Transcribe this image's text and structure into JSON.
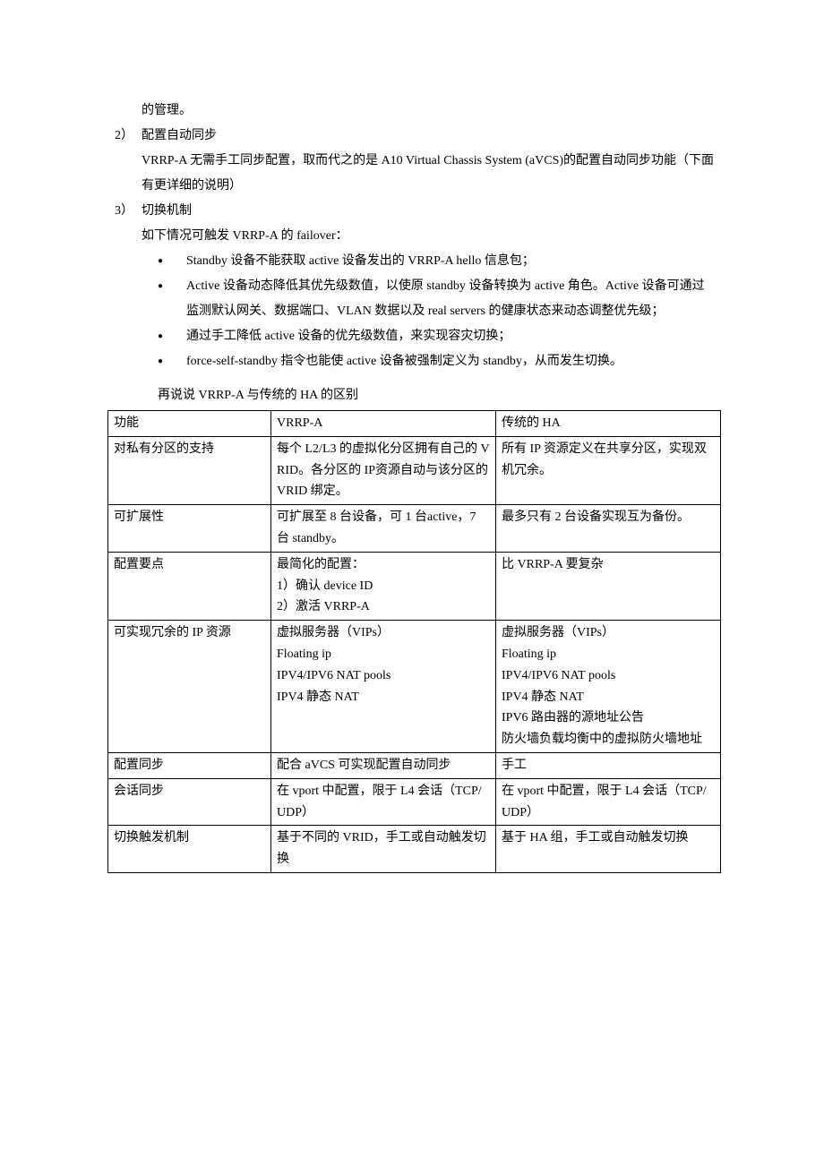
{
  "top_fragment": "的管理。",
  "item2": {
    "label": "2）",
    "title": "配置自动同步",
    "body": "VRRP-A 无需手工同步配置，取而代之的是 A10 Virtual Chassis System (aVCS)的配置自动同步功能（下面有更详细的说明）"
  },
  "item3": {
    "label": "3）",
    "title": "切换机制",
    "intro": "如下情况可触发 VRRP-A 的 failover：",
    "bullets": [
      "Standby 设备不能获取 active 设备发出的 VRRP-A hello 信息包；",
      "Active 设备动态降低其优先级数值，以使原 standby 设备转换为 active 角色。Active 设备可通过监测默认网关、数据端口、VLAN 数据以及 real servers 的健康状态来动态调整优先级；",
      "通过手工降低 active 设备的优先级数值，来实现容灾切换；",
      "force-self-standby 指令也能使 active 设备被强制定义为 standby，从而发生切换。"
    ]
  },
  "table_intro": "再说说 VRRP-A 与传统的 HA 的区别",
  "table": {
    "headers": [
      "功能",
      "VRRP-A",
      "传统的 HA"
    ],
    "rows": [
      [
        "对私有分区的支持",
        "每个 L2/L3 的虚拟化分区拥有自己的 VRID。各分区的 IP资源自动与该分区的 VRID 绑定。",
        "所有 IP 资源定义在共享分区，实现双机冗余。"
      ],
      [
        "可扩展性",
        "可扩展至 8 台设备，可 1 台active，7 台 standby。",
        "最多只有 2 台设备实现互为备份。"
      ],
      [
        "配置要点",
        "最简化的配置：\n1）确认 device ID\n2）激活 VRRP-A",
        "比 VRRP-A 要复杂"
      ],
      [
        "可实现冗余的 IP 资源",
        "虚拟服务器（VIPs）\nFloating ip\nIPV4/IPV6 NAT pools\nIPV4 静态 NAT",
        "虚拟服务器（VIPs）\nFloating ip\nIPV4/IPV6 NAT pools\nIPV4 静态 NAT\nIPV6 路由器的源地址公告\n防火墙负载均衡中的虚拟防火墙地址"
      ],
      [
        "配置同步",
        "配合 aVCS 可实现配置自动同步",
        "手工"
      ],
      [
        "会话同步",
        "在 vport 中配置，限于 L4 会话（TCP/UDP）",
        "在 vport 中配置，限于 L4 会话（TCP/UDP）"
      ],
      [
        "切换触发机制",
        "基于不同的 VRID，手工或自动触发切换",
        "基于 HA 组，手工或自动触发切换"
      ]
    ]
  }
}
